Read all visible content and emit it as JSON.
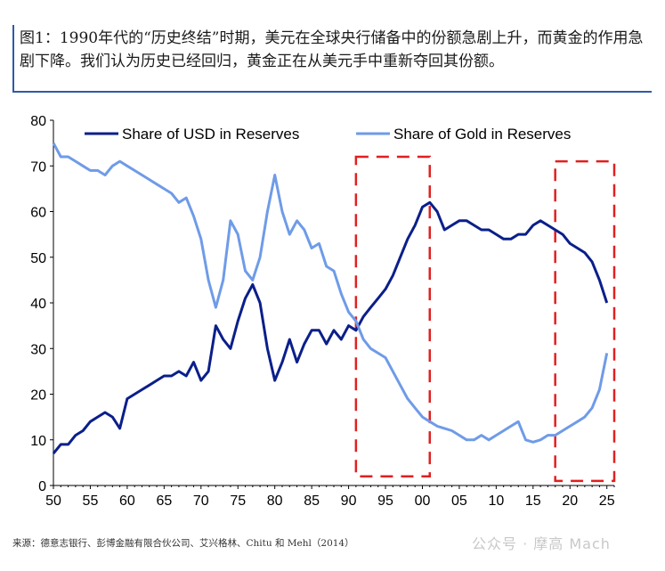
{
  "caption": {
    "text": "图1：1990年代的“历史终结”时期，美元在全球央行储备中的份额急剧上升，而黄金的作用急剧下降。我们认为历史已经回归，黄金正在从美元手中重新夺回其份额。"
  },
  "source": "来源：德意志银行、彭博金融有限合伙公司、艾兴格林、Chitu 和 Mehl（2014）",
  "watermark": "公众号 · 摩高 Mach",
  "chart_data": {
    "type": "line",
    "title": "",
    "xlabel": "",
    "ylabel": "",
    "xlim": [
      1950,
      2026
    ],
    "ylim": [
      0,
      80
    ],
    "xticks": [
      1950,
      1955,
      1960,
      1965,
      1970,
      1975,
      1980,
      1985,
      1990,
      1995,
      2000,
      2005,
      2010,
      2015,
      2020,
      2025
    ],
    "xtick_labels": [
      "50",
      "55",
      "60",
      "65",
      "70",
      "75",
      "80",
      "85",
      "90",
      "95",
      "00",
      "05",
      "10",
      "15",
      "20",
      "25"
    ],
    "yticks": [
      0,
      10,
      20,
      30,
      40,
      50,
      60,
      70,
      80
    ],
    "ytick_labels": [
      "0",
      "10",
      "20",
      "30",
      "40",
      "50",
      "60",
      "70",
      "80"
    ],
    "grid": false,
    "legend_position": "top",
    "series": [
      {
        "name": "Share of USD in Reserves",
        "color": "#0b1f8a",
        "points": [
          [
            1950,
            7
          ],
          [
            1951,
            9
          ],
          [
            1952,
            9
          ],
          [
            1953,
            11
          ],
          [
            1954,
            12
          ],
          [
            1955,
            14
          ],
          [
            1956,
            15
          ],
          [
            1957,
            16
          ],
          [
            1958,
            15
          ],
          [
            1959,
            12.5
          ],
          [
            1960,
            19
          ],
          [
            1961,
            20
          ],
          [
            1962,
            21
          ],
          [
            1963,
            22
          ],
          [
            1964,
            23
          ],
          [
            1965,
            24
          ],
          [
            1966,
            24
          ],
          [
            1967,
            25
          ],
          [
            1968,
            24
          ],
          [
            1969,
            27
          ],
          [
            1970,
            23
          ],
          [
            1971,
            25
          ],
          [
            1972,
            35
          ],
          [
            1973,
            32
          ],
          [
            1974,
            30
          ],
          [
            1975,
            36
          ],
          [
            1976,
            41
          ],
          [
            1977,
            44
          ],
          [
            1978,
            40
          ],
          [
            1979,
            30
          ],
          [
            1980,
            23
          ],
          [
            1981,
            27
          ],
          [
            1982,
            32
          ],
          [
            1983,
            27
          ],
          [
            1984,
            31
          ],
          [
            1985,
            34
          ],
          [
            1986,
            34
          ],
          [
            1987,
            31
          ],
          [
            1988,
            34
          ],
          [
            1989,
            32
          ],
          [
            1990,
            35
          ],
          [
            1991,
            34
          ],
          [
            1992,
            37
          ],
          [
            1993,
            39
          ],
          [
            1994,
            41
          ],
          [
            1995,
            43
          ],
          [
            1996,
            46
          ],
          [
            1997,
            50
          ],
          [
            1998,
            54
          ],
          [
            1999,
            57
          ],
          [
            2000,
            61
          ],
          [
            2001,
            62
          ],
          [
            2002,
            60
          ],
          [
            2003,
            56
          ],
          [
            2004,
            57
          ],
          [
            2005,
            58
          ],
          [
            2006,
            58
          ],
          [
            2007,
            57
          ],
          [
            2008,
            56
          ],
          [
            2009,
            56
          ],
          [
            2010,
            55
          ],
          [
            2011,
            54
          ],
          [
            2012,
            54
          ],
          [
            2013,
            55
          ],
          [
            2014,
            55
          ],
          [
            2015,
            57
          ],
          [
            2016,
            58
          ],
          [
            2017,
            57
          ],
          [
            2018,
            56
          ],
          [
            2019,
            55
          ],
          [
            2020,
            53
          ],
          [
            2021,
            52
          ],
          [
            2022,
            51
          ],
          [
            2023,
            49
          ],
          [
            2024,
            45
          ],
          [
            2025,
            40
          ]
        ]
      },
      {
        "name": "Share of Gold in Reserves",
        "color": "#6f9be8",
        "points": [
          [
            1950,
            75
          ],
          [
            1951,
            72
          ],
          [
            1952,
            72
          ],
          [
            1953,
            71
          ],
          [
            1954,
            70
          ],
          [
            1955,
            69
          ],
          [
            1956,
            69
          ],
          [
            1957,
            68
          ],
          [
            1958,
            70
          ],
          [
            1959,
            71
          ],
          [
            1960,
            70
          ],
          [
            1961,
            69
          ],
          [
            1962,
            68
          ],
          [
            1963,
            67
          ],
          [
            1964,
            66
          ],
          [
            1965,
            65
          ],
          [
            1966,
            64
          ],
          [
            1967,
            62
          ],
          [
            1968,
            63
          ],
          [
            1969,
            59
          ],
          [
            1970,
            54
          ],
          [
            1971,
            45
          ],
          [
            1972,
            39
          ],
          [
            1973,
            45
          ],
          [
            1974,
            58
          ],
          [
            1975,
            55
          ],
          [
            1976,
            47
          ],
          [
            1977,
            45
          ],
          [
            1978,
            50
          ],
          [
            1979,
            60
          ],
          [
            1980,
            68
          ],
          [
            1981,
            60
          ],
          [
            1982,
            55
          ],
          [
            1983,
            58
          ],
          [
            1984,
            56
          ],
          [
            1985,
            52
          ],
          [
            1986,
            53
          ],
          [
            1987,
            48
          ],
          [
            1988,
            47
          ],
          [
            1989,
            42
          ],
          [
            1990,
            38
          ],
          [
            1991,
            36
          ],
          [
            1992,
            32
          ],
          [
            1993,
            30
          ],
          [
            1994,
            29
          ],
          [
            1995,
            28
          ],
          [
            1996,
            25
          ],
          [
            1997,
            22
          ],
          [
            1998,
            19
          ],
          [
            1999,
            17
          ],
          [
            2000,
            15
          ],
          [
            2001,
            14
          ],
          [
            2002,
            13
          ],
          [
            2003,
            12.5
          ],
          [
            2004,
            12
          ],
          [
            2005,
            11
          ],
          [
            2006,
            10
          ],
          [
            2007,
            10
          ],
          [
            2008,
            11
          ],
          [
            2009,
            10
          ],
          [
            2010,
            11
          ],
          [
            2011,
            12
          ],
          [
            2012,
            13
          ],
          [
            2013,
            14
          ],
          [
            2014,
            10
          ],
          [
            2015,
            9.5
          ],
          [
            2016,
            10
          ],
          [
            2017,
            11
          ],
          [
            2018,
            11
          ],
          [
            2019,
            12
          ],
          [
            2020,
            13
          ],
          [
            2021,
            14
          ],
          [
            2022,
            15
          ],
          [
            2023,
            17
          ],
          [
            2024,
            21
          ],
          [
            2025,
            29
          ]
        ]
      }
    ],
    "highlight_boxes": [
      {
        "x0": 1991,
        "x1": 2001,
        "y0": 2,
        "y1": 72,
        "color": "#e02020"
      },
      {
        "x0": 2018,
        "x1": 2026,
        "y0": 1,
        "y1": 71,
        "color": "#e02020"
      }
    ]
  }
}
